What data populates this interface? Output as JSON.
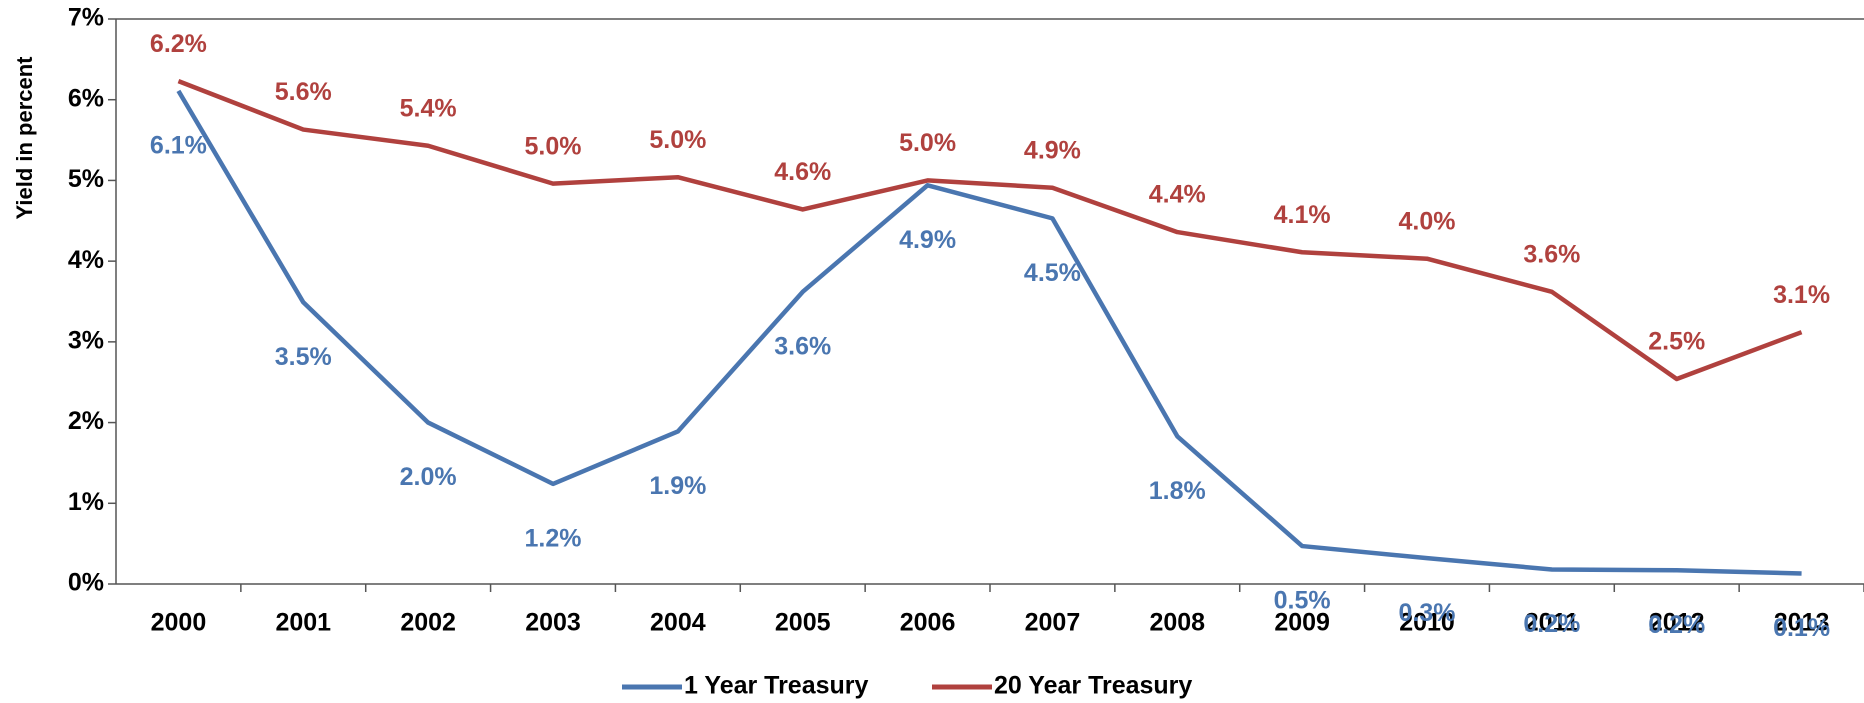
{
  "chart_data": {
    "type": "line",
    "y_label": "Yield in percent",
    "categories": [
      "2000",
      "2001",
      "2002",
      "2003",
      "2004",
      "2005",
      "2006",
      "2007",
      "2008",
      "2009",
      "2010",
      "2011",
      "2012",
      "2013"
    ],
    "series": [
      {
        "name": "1 Year Treasury",
        "color": "#4a76b0",
        "values": [
          6.11,
          3.49,
          2.0,
          1.24,
          1.89,
          3.62,
          4.94,
          4.53,
          1.83,
          0.47,
          0.32,
          0.18,
          0.17,
          0.13
        ],
        "value_labels": [
          "6.1%",
          "3.5%",
          "2.0%",
          "1.2%",
          "1.9%",
          "3.6%",
          "4.9%",
          "4.5%",
          "1.8%",
          "0.5%",
          "0.3%",
          "0.2%",
          "0.2%",
          "0.1%"
        ]
      },
      {
        "name": "20 Year Treasury",
        "color": "#b0413e",
        "values": [
          6.23,
          5.63,
          5.43,
          4.96,
          5.04,
          4.64,
          5.0,
          4.91,
          4.36,
          4.11,
          4.03,
          3.62,
          2.54,
          3.12
        ],
        "value_labels": [
          "6.2%",
          "5.6%",
          "5.4%",
          "5.0%",
          "5.0%",
          "4.6%",
          "5.0%",
          "4.9%",
          "4.4%",
          "4.1%",
          "4.0%",
          "3.6%",
          "2.5%",
          "3.1%"
        ]
      }
    ],
    "ylim": [
      0,
      7
    ],
    "yticks": [
      {
        "value": 0,
        "label": "0%"
      },
      {
        "value": 1,
        "label": "1%"
      },
      {
        "value": 2,
        "label": "2%"
      },
      {
        "value": 3,
        "label": "3%"
      },
      {
        "value": 4,
        "label": "4%"
      },
      {
        "value": 5,
        "label": "5%"
      },
      {
        "value": 6,
        "label": "6%"
      },
      {
        "value": 7,
        "label": "7%"
      }
    ],
    "grid": false,
    "legend": "bottom"
  }
}
